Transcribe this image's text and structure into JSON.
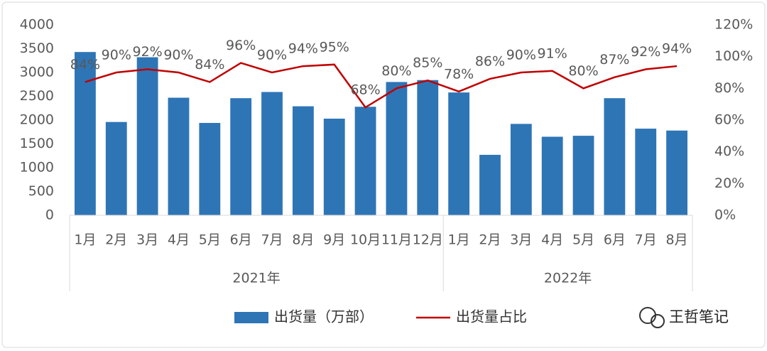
{
  "chart_data": {
    "type": "bar-line",
    "categories": [
      "1月",
      "2月",
      "3月",
      "4月",
      "5月",
      "6月",
      "7月",
      "8月",
      "9月",
      "10月",
      "11月",
      "12月",
      "1月",
      "2月",
      "3月",
      "4月",
      "5月",
      "6月",
      "7月",
      "8月"
    ],
    "groups": [
      {
        "name": "2021年"
      },
      {
        "name": "2022年"
      }
    ],
    "series": [
      {
        "name": "出货量（万部）",
        "type": "bar",
        "color": "#2e75b6",
        "values": [
          3430,
          1960,
          3320,
          2470,
          1940,
          2460,
          2590,
          2290,
          2030,
          2280,
          2800,
          2840,
          2580,
          1270,
          1920,
          1650,
          1670,
          2460,
          1820,
          1780
        ]
      },
      {
        "name": "出货量占比",
        "type": "line",
        "axis": "y2",
        "color": "#c00000",
        "values": [
          84,
          90,
          92,
          90,
          84,
          96,
          90,
          94,
          95,
          68,
          80,
          85,
          78,
          86,
          90,
          91,
          80,
          87,
          92,
          94
        ],
        "value_labels": [
          "84%",
          "90%",
          "92%",
          "90%",
          "84%",
          "96%",
          "90%",
          "94%",
          "95%",
          "68%",
          "80%",
          "85%",
          "78%",
          "86%",
          "90%",
          "91%",
          "80%",
          "87%",
          "92%",
          "94%"
        ]
      }
    ],
    "ylim": [
      0,
      4000
    ],
    "yticks": [
      0,
      500,
      1000,
      1500,
      2000,
      2500,
      3000,
      3500,
      4000
    ],
    "y2lim": [
      0,
      120
    ],
    "y2ticks": [
      {
        "value": 0,
        "label": "0%"
      },
      {
        "value": 20,
        "label": "20%"
      },
      {
        "value": 40,
        "label": "40%"
      },
      {
        "value": 60,
        "label": "60%"
      },
      {
        "value": 80,
        "label": "80%"
      },
      {
        "value": 100,
        "label": "100%"
      },
      {
        "value": 120,
        "label": "120%"
      }
    ],
    "legend": "bottom",
    "source": "王哲笔记"
  }
}
